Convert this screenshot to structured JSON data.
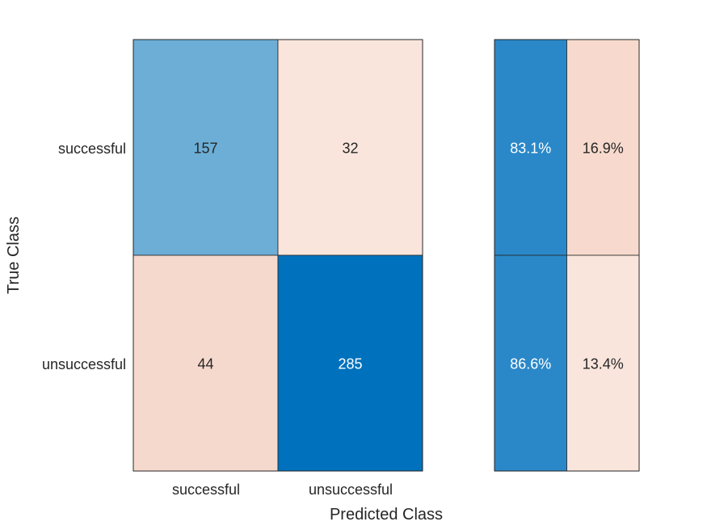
{
  "chart_data": {
    "type": "heatmap",
    "title": "",
    "xlabel": "Predicted Class",
    "ylabel": "True Class",
    "classes": [
      "successful",
      "unsuccessful"
    ],
    "matrix": [
      [
        157,
        32
      ],
      [
        44,
        285
      ]
    ],
    "row_summary": {
      "values": [
        [
          "83.1%",
          "16.9%"
        ],
        [
          "86.6%",
          "13.4%"
        ]
      ],
      "fractions": [
        [
          0.831,
          0.169
        ],
        [
          0.866,
          0.134
        ]
      ]
    },
    "colors": {
      "correct_max": "#0072bd",
      "correct_mid": "#6caed6",
      "incorrect_light": "#f9e5dc",
      "incorrect_mid": "#f6d9cd",
      "summary_correct": "#2a88c8",
      "summary_incorrect_high": "#f7dacd",
      "summary_incorrect_low": "#f9e5dc"
    }
  }
}
